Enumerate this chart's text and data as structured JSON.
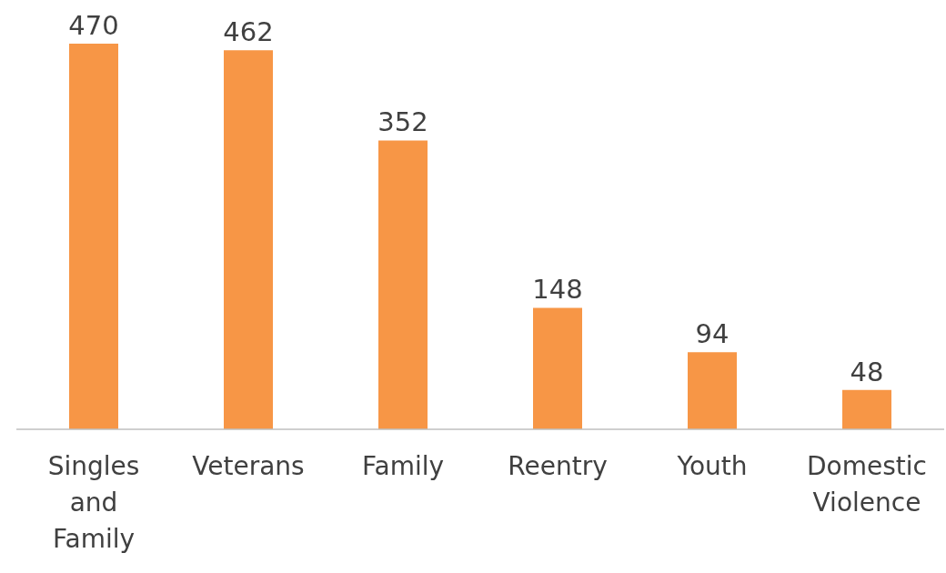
{
  "chart_data": {
    "type": "bar",
    "categories": [
      "Singles and Family",
      "Veterans",
      "Family",
      "Reentry",
      "Youth",
      "Domestic Violence"
    ],
    "values": [
      470,
      462,
      352,
      148,
      94,
      48
    ],
    "color": "#f79646",
    "data_labels": true,
    "grid": false,
    "legend": false
  }
}
